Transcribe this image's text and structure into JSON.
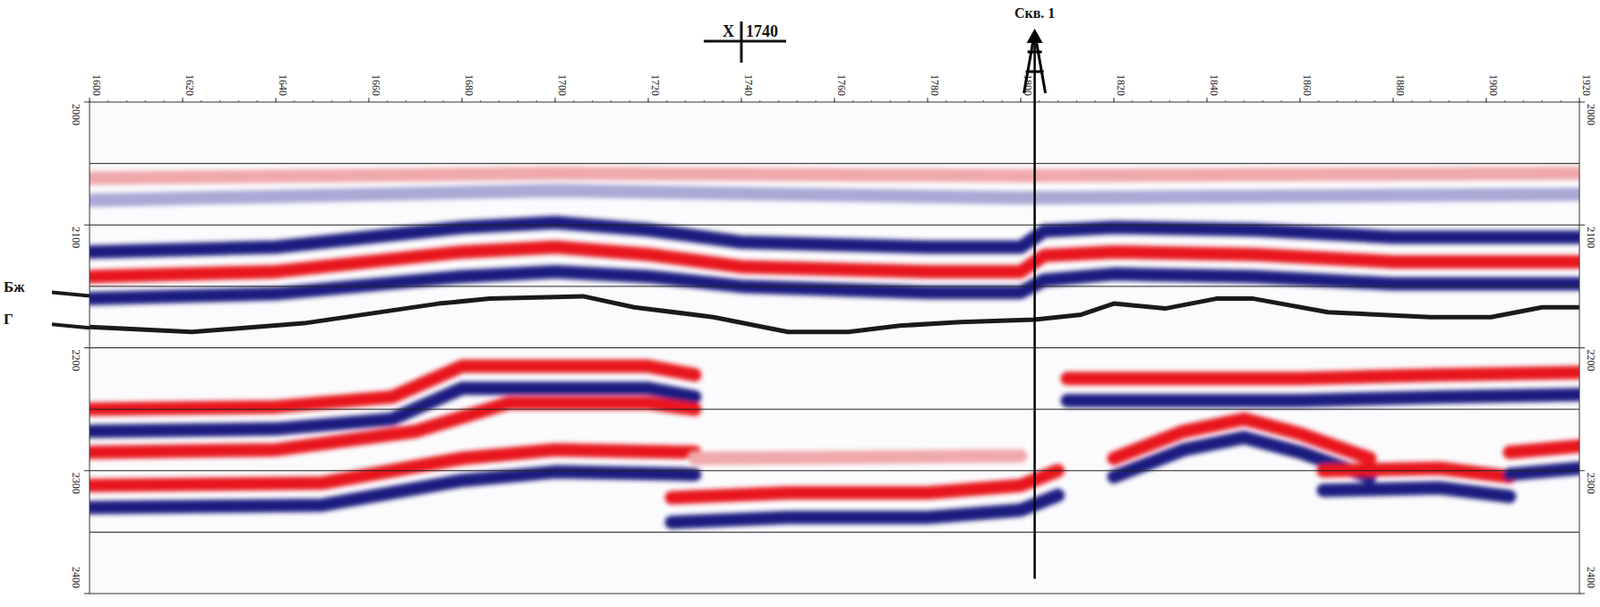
{
  "chart_data": {
    "type": "seismic_section",
    "xlim": [
      1600,
      1920
    ],
    "xticks": [
      1600,
      1620,
      1640,
      1660,
      1680,
      1700,
      1720,
      1740,
      1760,
      1780,
      1800,
      1820,
      1840,
      1860,
      1880,
      1900,
      1920
    ],
    "ylim": [
      2000,
      2400
    ],
    "yticks": [
      2000,
      2100,
      2200,
      2300,
      2400
    ],
    "ygrid": [
      2050,
      2100,
      2150,
      2200,
      2250,
      2300,
      2350
    ],
    "grid": true,
    "marker": {
      "label": "X",
      "value": 1740
    },
    "well": {
      "label": "Скв. 1",
      "trace": 1803,
      "end": 2388
    },
    "horizon_labels": [
      {
        "label": "Бж",
        "time": 2157
      },
      {
        "label": "Г",
        "time": 2183
      }
    ],
    "horizon": {
      "color": "#1a1a1a",
      "x": [
        1600,
        1622,
        1646,
        1675,
        1686,
        1706,
        1717,
        1734,
        1750,
        1763,
        1774,
        1787,
        1803,
        1813,
        1820,
        1831,
        1842,
        1850,
        1866,
        1888,
        1901,
        1912,
        1920
      ],
      "values": [
        2183,
        2187,
        2180,
        2164,
        2160,
        2158,
        2167,
        2175,
        2187,
        2187,
        2182,
        2179,
        2177,
        2173,
        2164,
        2168,
        2160,
        2160,
        2171,
        2175,
        2175,
        2167,
        2167
      ]
    },
    "events": [
      {
        "color": "#a9a9d6",
        "x": [
          1600,
          1700,
          1800,
          1920
        ],
        "values": [
          2080,
          2072,
          2078,
          2075
        ]
      },
      {
        "color": "#f0a8ab",
        "x": [
          1600,
          1700,
          1800,
          1920
        ],
        "values": [
          2062,
          2058,
          2060,
          2058
        ]
      },
      {
        "color": "#1c1c80",
        "x": [
          1600,
          1640,
          1680,
          1700,
          1720,
          1740,
          1780,
          1800,
          1805,
          1820,
          1850,
          1880,
          1920
        ],
        "values": [
          2122,
          2118,
          2102,
          2098,
          2104,
          2114,
          2118,
          2118,
          2105,
          2102,
          2104,
          2110,
          2110
        ]
      },
      {
        "color": "#e8141c",
        "x": [
          1600,
          1640,
          1680,
          1700,
          1720,
          1740,
          1780,
          1800,
          1805,
          1820,
          1850,
          1880,
          1920
        ],
        "values": [
          2142,
          2138,
          2122,
          2118,
          2124,
          2134,
          2138,
          2138,
          2125,
          2122,
          2124,
          2130,
          2130
        ]
      },
      {
        "color": "#1c1c80",
        "x": [
          1600,
          1640,
          1680,
          1700,
          1720,
          1740,
          1780,
          1800,
          1805,
          1820,
          1850,
          1880,
          1920
        ],
        "values": [
          2160,
          2156,
          2142,
          2138,
          2142,
          2150,
          2155,
          2155,
          2145,
          2140,
          2142,
          2148,
          2148
        ]
      },
      {
        "color": "#e8141c",
        "x": [
          1600,
          1640,
          1665,
          1680,
          1720,
          1730
        ],
        "values": [
          2250,
          2248,
          2240,
          2215,
          2215,
          2222
        ]
      },
      {
        "color": "#1c1c80",
        "x": [
          1600,
          1640,
          1665,
          1680,
          1720,
          1730
        ],
        "values": [
          2268,
          2266,
          2258,
          2233,
          2233,
          2240
        ]
      },
      {
        "color": "#e8141c",
        "x": [
          1600,
          1640,
          1670,
          1690,
          1720,
          1730
        ],
        "values": [
          2285,
          2283,
          2268,
          2245,
          2245,
          2250
        ]
      },
      {
        "color": "#e8141c",
        "x": [
          1600,
          1650,
          1680,
          1700,
          1730
        ],
        "values": [
          2312,
          2310,
          2290,
          2283,
          2285
        ]
      },
      {
        "color": "#1c1c80",
        "x": [
          1600,
          1650,
          1680,
          1700,
          1730
        ],
        "values": [
          2330,
          2328,
          2308,
          2301,
          2303
        ]
      },
      {
        "color": "#e8141c",
        "x": [
          1725,
          1750,
          1780,
          1800,
          1808
        ],
        "values": [
          2322,
          2318,
          2318,
          2312,
          2300
        ]
      },
      {
        "color": "#1c1c80",
        "x": [
          1725,
          1750,
          1780,
          1800,
          1808
        ],
        "values": [
          2342,
          2338,
          2338,
          2332,
          2320
        ]
      },
      {
        "color": "#f0a8ab",
        "x": [
          1730,
          1800
        ],
        "values": [
          2290,
          2288
        ]
      },
      {
        "color": "#e8141c",
        "x": [
          1810,
          1860,
          1890,
          1920
        ],
        "values": [
          2225,
          2225,
          2222,
          2220
        ]
      },
      {
        "color": "#1c1c80",
        "x": [
          1810,
          1860,
          1890,
          1920
        ],
        "values": [
          2243,
          2243,
          2240,
          2238
        ]
      },
      {
        "color": "#e8141c",
        "x": [
          1820,
          1835,
          1848,
          1860,
          1875
        ],
        "values": [
          2290,
          2268,
          2258,
          2270,
          2290
        ]
      },
      {
        "color": "#1c1c80",
        "x": [
          1820,
          1835,
          1848,
          1860,
          1875
        ],
        "values": [
          2305,
          2283,
          2273,
          2285,
          2305
        ]
      },
      {
        "color": "#e8141c",
        "x": [
          1865,
          1890,
          1905
        ],
        "values": [
          2300,
          2298,
          2305
        ]
      },
      {
        "color": "#1c1c80",
        "x": [
          1865,
          1890,
          1905
        ],
        "values": [
          2316,
          2314,
          2321
        ]
      },
      {
        "color": "#e8141c",
        "x": [
          1905,
          1920
        ],
        "values": [
          2285,
          2280
        ]
      },
      {
        "color": "#1c1c80",
        "x": [
          1905,
          1920
        ],
        "values": [
          2303,
          2298
        ]
      }
    ]
  }
}
